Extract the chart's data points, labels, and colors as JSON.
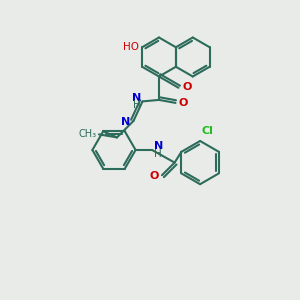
{
  "bg_color": "#e8ebe8",
  "bond_color": "#2d6b5a",
  "atom_colors": {
    "O": "#cc0000",
    "N": "#0000cc",
    "H": "#2d6b5a",
    "Cl": "#22bb22",
    "C": "#2d6b5a"
  },
  "line_width": 1.5,
  "figsize": [
    3.0,
    3.0
  ],
  "dpi": 100
}
